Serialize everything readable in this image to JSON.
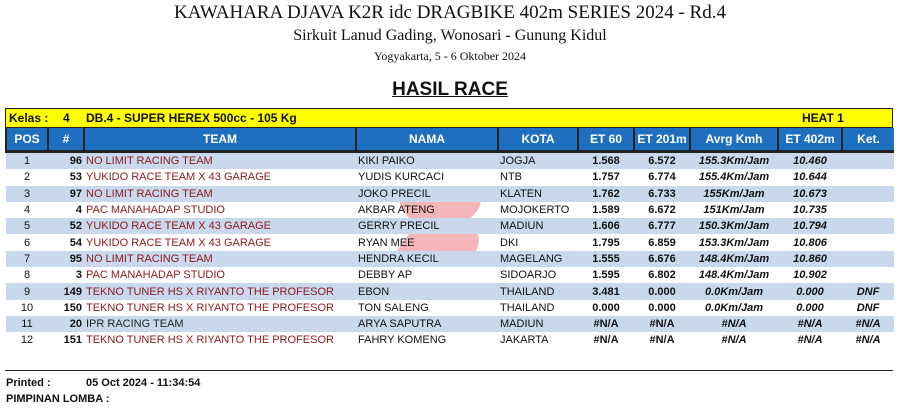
{
  "header": {
    "title": "KAWAHARA DJAVA K2R idc DRAGBIKE 402m SERIES 2024 - Rd.4",
    "venue": "Sirkuit Lanud Gading, Wonosari - Gunung Kidul",
    "city_date": "Yogyakarta, 5 - 6 Oktober 2024",
    "section": "HASIL RACE"
  },
  "class_bar": {
    "label": "Kelas :",
    "number": "4",
    "name": "DB.4 - SUPER HEREX 500cc - 105 Kg",
    "heat": "HEAT 1",
    "color": "#ffff00"
  },
  "columns": [
    "POS",
    "#",
    "TEAM",
    "NAMA",
    "KOTA",
    "ET 60",
    "ET 201m",
    "Avrg Kmh",
    "ET 402m",
    "Ket."
  ],
  "rows": [
    [
      "1",
      "96",
      "NO LIMIT RACING TEAM",
      "KIKI PAIKO",
      "JOGJA",
      "1.568",
      "6.572",
      "155.3Km/Jam",
      "10.460",
      ""
    ],
    [
      "2",
      "53",
      "YUKIDO RACE TEAM X 43 GARAGE",
      "YUDIS KURCACI",
      "NTB",
      "1.757",
      "6.774",
      "155.4Km/Jam",
      "10.644",
      ""
    ],
    [
      "3",
      "97",
      "NO LIMIT RACING TEAM",
      "JOKO PRECIL",
      "KLATEN",
      "1.762",
      "6.733",
      "155Km/Jam",
      "10.673",
      ""
    ],
    [
      "4",
      "4",
      "PAC MANAHADAP STUDIO",
      "AKBAR ATENG",
      "MOJOKERTO",
      "1.589",
      "6.672",
      "151Km/Jam",
      "10.735",
      ""
    ],
    [
      "5",
      "52",
      "YUKIDO RACE TEAM X 43 GARAGE",
      "GERRY PRECIL",
      "MADIUN",
      "1.606",
      "6.777",
      "150.3Km/Jam",
      "10.794",
      ""
    ],
    [
      "6",
      "54",
      "YUKIDO RACE TEAM X 43 GARAGE",
      "RYAN MEE",
      "DKI",
      "1.795",
      "6.859",
      "153.3Km/Jam",
      "10.806",
      ""
    ],
    [
      "7",
      "95",
      "NO LIMIT RACING TEAM",
      "HENDRA KECIL",
      "MAGELANG",
      "1.555",
      "6.676",
      "148.4Km/Jam",
      "10.860",
      ""
    ],
    [
      "8",
      "3",
      "PAC MANAHADAP STUDIO",
      "DEBBY AP",
      "SIDOARJO",
      "1.595",
      "6.802",
      "148.4Km/Jam",
      "10.902",
      ""
    ],
    [
      "9",
      "149",
      "TEKNO TUNER HS X RIYANTO THE PROFESOR",
      "EBON",
      "THAILAND",
      "3.481",
      "0.000",
      "0.0Km/Jam",
      "0.000",
      "DNF"
    ],
    [
      "10",
      "150",
      "TEKNO TUNER HS X RIYANTO THE PROFESOR",
      "TON SALENG",
      "THAILAND",
      "0.000",
      "0.000",
      "0.0Km/Jam",
      "0.000",
      "DNF"
    ],
    [
      "11",
      "20",
      "IPR RACING TEAM",
      "ARYA SAPUTRA",
      "MADIUN",
      "#N/A",
      "#N/A",
      "#N/A",
      "#N/A",
      "#N/A"
    ],
    [
      "12",
      "151",
      "TEKNO TUNER HS X RIYANTO THE PROFESOR",
      "FAHRY KOMENG",
      "JAKARTA",
      "#N/A",
      "#N/A",
      "#N/A",
      "#N/A",
      "#N/A"
    ]
  ],
  "footer": {
    "printed_label": "Printed :",
    "printed_value": "05 Oct 2024 - 11:34:54",
    "pimpinan_label": "PIMPINAN LOMBA :"
  },
  "colors": {
    "header_bg": "#1f6fc0",
    "row_alt": "#c9d8ec",
    "team_text": "#8b1a1a"
  }
}
